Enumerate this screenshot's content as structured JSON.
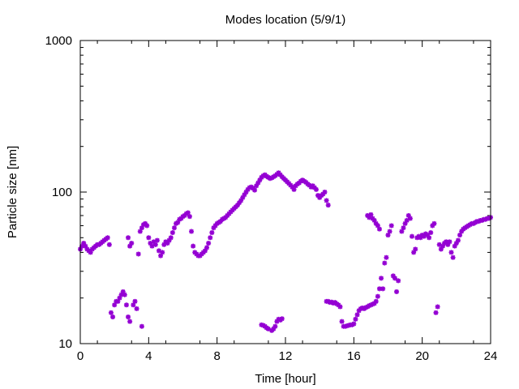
{
  "chart_data": {
    "type": "scatter",
    "title": "Modes location (5/9/1)",
    "xlabel": "Time [hour]",
    "ylabel": "Particle size [nm]",
    "xlim": [
      0,
      24
    ],
    "ylim": [
      10,
      1000
    ],
    "yscale": "log",
    "grid": false,
    "legend": "none",
    "xticks": [
      0,
      4,
      8,
      12,
      16,
      20,
      24
    ],
    "xtick_labels": [
      "0",
      "4",
      "8",
      "12",
      "16",
      "20",
      "24"
    ],
    "yticks": [
      10,
      100,
      1000
    ],
    "ytick_labels": [
      "10",
      "100",
      "1000"
    ],
    "marker_color": "#9400d3",
    "series": [
      {
        "values": [
          [
            0.0,
            42
          ],
          [
            0.1,
            44
          ],
          [
            0.2,
            46
          ],
          [
            0.3,
            44
          ],
          [
            0.4,
            42
          ],
          [
            0.5,
            41
          ],
          [
            0.6,
            40
          ],
          [
            0.7,
            42
          ],
          [
            0.8,
            43
          ],
          [
            0.9,
            44
          ],
          [
            1.0,
            45
          ],
          [
            1.1,
            45
          ],
          [
            1.2,
            46
          ],
          [
            1.3,
            47
          ],
          [
            1.4,
            48
          ],
          [
            1.5,
            49
          ],
          [
            1.6,
            50
          ],
          [
            1.7,
            45
          ],
          [
            1.8,
            16
          ],
          [
            1.9,
            15
          ],
          [
            2.0,
            18
          ],
          [
            2.1,
            19
          ],
          [
            2.2,
            19
          ],
          [
            2.3,
            20
          ],
          [
            2.4,
            21
          ],
          [
            2.5,
            22
          ],
          [
            2.6,
            21
          ],
          [
            2.7,
            18
          ],
          [
            2.8,
            15
          ],
          [
            2.9,
            14
          ],
          [
            2.8,
            50
          ],
          [
            2.9,
            44
          ],
          [
            3.0,
            46
          ],
          [
            3.1,
            18
          ],
          [
            3.2,
            19
          ],
          [
            3.3,
            17
          ],
          [
            3.4,
            39
          ],
          [
            3.5,
            55
          ],
          [
            3.6,
            58
          ],
          [
            3.7,
            61
          ],
          [
            3.8,
            62
          ],
          [
            3.9,
            60
          ],
          [
            3.6,
            13
          ],
          [
            4.0,
            50
          ],
          [
            4.1,
            46
          ],
          [
            4.2,
            44
          ],
          [
            4.3,
            47
          ],
          [
            4.4,
            45
          ],
          [
            4.5,
            48
          ],
          [
            4.6,
            41
          ],
          [
            4.7,
            38
          ],
          [
            4.8,
            40
          ],
          [
            4.9,
            45
          ],
          [
            5.0,
            47
          ],
          [
            5.1,
            46
          ],
          [
            5.2,
            48
          ],
          [
            5.3,
            50
          ],
          [
            5.4,
            54
          ],
          [
            5.5,
            58
          ],
          [
            5.6,
            62
          ],
          [
            5.7,
            63
          ],
          [
            5.8,
            66
          ],
          [
            5.9,
            67
          ],
          [
            6.0,
            69
          ],
          [
            6.1,
            70
          ],
          [
            6.2,
            72
          ],
          [
            6.3,
            73
          ],
          [
            6.4,
            69
          ],
          [
            6.5,
            55
          ],
          [
            6.6,
            44
          ],
          [
            6.7,
            40
          ],
          [
            6.8,
            39
          ],
          [
            6.9,
            38
          ],
          [
            7.0,
            38
          ],
          [
            7.1,
            39
          ],
          [
            7.2,
            40
          ],
          [
            7.3,
            41
          ],
          [
            7.4,
            43
          ],
          [
            7.5,
            46
          ],
          [
            7.6,
            50
          ],
          [
            7.7,
            54
          ],
          [
            7.8,
            58
          ],
          [
            7.9,
            60
          ],
          [
            8.0,
            62
          ],
          [
            8.1,
            63
          ],
          [
            8.2,
            64
          ],
          [
            8.3,
            66
          ],
          [
            8.4,
            67
          ],
          [
            8.5,
            68
          ],
          [
            8.6,
            70
          ],
          [
            8.7,
            72
          ],
          [
            8.8,
            74
          ],
          [
            8.9,
            76
          ],
          [
            9.0,
            78
          ],
          [
            9.1,
            80
          ],
          [
            9.2,
            82
          ],
          [
            9.3,
            85
          ],
          [
            9.4,
            88
          ],
          [
            9.5,
            92
          ],
          [
            9.6,
            96
          ],
          [
            9.7,
            100
          ],
          [
            9.8,
            104
          ],
          [
            9.9,
            107
          ],
          [
            10.0,
            108
          ],
          [
            10.1,
            106
          ],
          [
            10.2,
            103
          ],
          [
            10.3,
            110
          ],
          [
            10.4,
            115
          ],
          [
            10.5,
            120
          ],
          [
            10.6,
            125
          ],
          [
            10.7,
            128
          ],
          [
            10.8,
            130
          ],
          [
            10.9,
            127
          ],
          [
            11.0,
            125
          ],
          [
            11.1,
            123
          ],
          [
            11.2,
            124
          ],
          [
            11.3,
            126
          ],
          [
            11.4,
            128
          ],
          [
            11.5,
            131
          ],
          [
            11.6,
            134
          ],
          [
            11.7,
            130
          ],
          [
            11.8,
            126
          ],
          [
            11.9,
            123
          ],
          [
            12.0,
            120
          ],
          [
            12.1,
            117
          ],
          [
            12.2,
            114
          ],
          [
            12.3,
            111
          ],
          [
            12.4,
            108
          ],
          [
            12.5,
            104
          ],
          [
            12.6,
            110
          ],
          [
            12.7,
            113
          ],
          [
            12.8,
            115
          ],
          [
            12.9,
            118
          ],
          [
            13.0,
            120
          ],
          [
            13.1,
            118
          ],
          [
            13.2,
            116
          ],
          [
            13.3,
            113
          ],
          [
            13.4,
            111
          ],
          [
            13.5,
            108
          ],
          [
            13.6,
            110
          ],
          [
            13.7,
            107
          ],
          [
            13.8,
            104
          ],
          [
            13.9,
            95
          ],
          [
            14.0,
            92
          ],
          [
            14.1,
            95
          ],
          [
            14.2,
            97
          ],
          [
            14.3,
            100
          ],
          [
            14.4,
            88
          ],
          [
            14.5,
            82
          ],
          [
            10.6,
            13.3
          ],
          [
            10.7,
            13.2
          ],
          [
            10.8,
            13.0
          ],
          [
            10.9,
            12.7
          ],
          [
            11.0,
            12.5
          ],
          [
            11.2,
            12.2
          ],
          [
            11.3,
            12.5
          ],
          [
            11.4,
            13.0
          ],
          [
            11.5,
            14.0
          ],
          [
            11.6,
            14.5
          ],
          [
            11.7,
            14.3
          ],
          [
            11.8,
            14.6
          ],
          [
            14.4,
            19
          ],
          [
            14.5,
            19
          ],
          [
            14.6,
            18.7
          ],
          [
            14.7,
            18.8
          ],
          [
            14.8,
            18.5
          ],
          [
            14.9,
            18.7
          ],
          [
            15.0,
            18.3
          ],
          [
            15.1,
            18.0
          ],
          [
            15.2,
            17.5
          ],
          [
            15.3,
            14
          ],
          [
            15.4,
            13
          ],
          [
            15.5,
            13.0
          ],
          [
            15.6,
            13.1
          ],
          [
            15.7,
            13.2
          ],
          [
            15.8,
            13.3
          ],
          [
            15.9,
            13.3
          ],
          [
            16.0,
            13.5
          ],
          [
            16.1,
            14.5
          ],
          [
            16.2,
            15.5
          ],
          [
            16.3,
            16.5
          ],
          [
            16.4,
            17.0
          ],
          [
            16.5,
            17.2
          ],
          [
            16.6,
            17.0
          ],
          [
            16.7,
            17.3
          ],
          [
            16.8,
            17.5
          ],
          [
            16.9,
            17.8
          ],
          [
            17.0,
            18.0
          ],
          [
            17.1,
            18.2
          ],
          [
            17.2,
            18.4
          ],
          [
            17.3,
            19.0
          ],
          [
            17.4,
            20.5
          ],
          [
            17.5,
            23
          ],
          [
            17.6,
            27
          ],
          [
            17.7,
            23
          ],
          [
            17.8,
            34
          ],
          [
            17.9,
            37
          ],
          [
            16.8,
            70
          ],
          [
            16.9,
            68
          ],
          [
            17.0,
            71
          ],
          [
            17.1,
            67
          ],
          [
            17.2,
            65
          ],
          [
            17.3,
            62
          ],
          [
            17.4,
            60
          ],
          [
            17.5,
            57
          ],
          [
            18.0,
            52
          ],
          [
            18.1,
            55
          ],
          [
            18.2,
            60
          ],
          [
            18.3,
            28
          ],
          [
            18.4,
            27
          ],
          [
            18.5,
            22
          ],
          [
            18.6,
            26
          ],
          [
            18.8,
            55
          ],
          [
            18.9,
            58
          ],
          [
            19.0,
            62
          ],
          [
            19.1,
            65
          ],
          [
            19.2,
            70
          ],
          [
            19.3,
            67
          ],
          [
            19.4,
            51
          ],
          [
            19.5,
            40
          ],
          [
            19.6,
            42
          ],
          [
            19.7,
            50
          ],
          [
            19.8,
            51
          ],
          [
            19.9,
            50
          ],
          [
            20.0,
            52
          ],
          [
            20.1,
            51
          ],
          [
            20.2,
            53
          ],
          [
            20.3,
            52
          ],
          [
            20.4,
            50
          ],
          [
            20.5,
            54
          ],
          [
            20.6,
            60
          ],
          [
            20.7,
            62
          ],
          [
            20.8,
            16
          ],
          [
            20.9,
            17.5
          ],
          [
            21.0,
            45
          ],
          [
            21.1,
            42
          ],
          [
            21.2,
            44
          ],
          [
            21.3,
            46
          ],
          [
            21.4,
            47
          ],
          [
            21.5,
            45
          ],
          [
            21.6,
            47
          ],
          [
            21.7,
            40
          ],
          [
            21.8,
            37
          ],
          [
            21.9,
            44
          ],
          [
            22.0,
            46
          ],
          [
            22.1,
            48
          ],
          [
            22.2,
            52
          ],
          [
            22.3,
            55
          ],
          [
            22.4,
            57
          ],
          [
            22.5,
            58
          ],
          [
            22.6,
            59
          ],
          [
            22.7,
            60
          ],
          [
            22.8,
            61
          ],
          [
            22.9,
            62
          ],
          [
            23.0,
            62
          ],
          [
            23.1,
            63
          ],
          [
            23.2,
            64
          ],
          [
            23.3,
            64
          ],
          [
            23.4,
            65
          ],
          [
            23.5,
            65
          ],
          [
            23.6,
            66
          ],
          [
            23.7,
            66
          ],
          [
            23.8,
            67
          ],
          [
            23.9,
            67
          ],
          [
            24.0,
            68
          ]
        ]
      }
    ]
  }
}
